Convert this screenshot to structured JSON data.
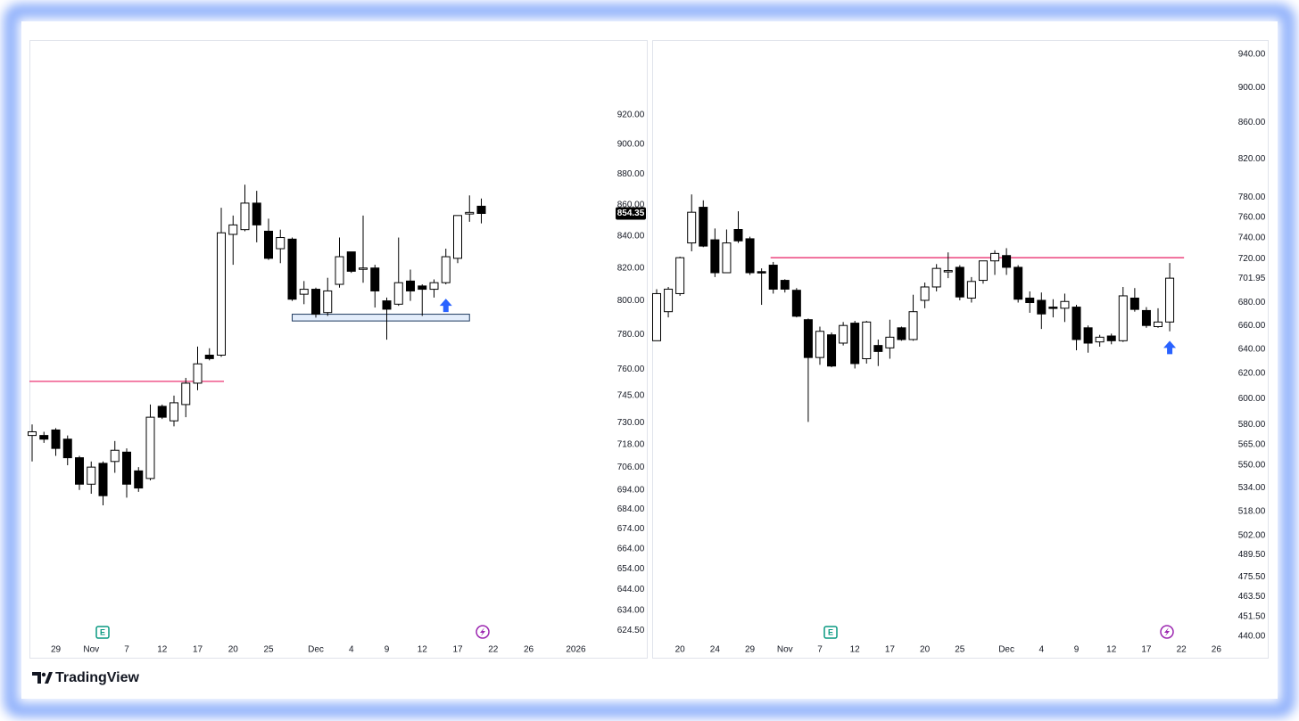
{
  "brand": "TradingView",
  "chart_data": [
    {
      "type": "candlestick",
      "yscale": "log",
      "up_color": "#ffffff",
      "down_color": "#000000",
      "categories": [
        null,
        null,
        "29",
        null,
        null,
        "Nov",
        null,
        null,
        "7",
        null,
        null,
        "12",
        null,
        null,
        "17",
        null,
        null,
        "20",
        null,
        null,
        "25",
        null,
        null,
        null,
        "Dec",
        null,
        null,
        "4",
        null,
        null,
        "9",
        null,
        null,
        "12",
        null,
        null,
        "17",
        null,
        null,
        "22",
        null,
        null,
        "26",
        null,
        null,
        null,
        "2026"
      ],
      "open": [
        723,
        723,
        726,
        721,
        711,
        697,
        708,
        709,
        714,
        704,
        700,
        739,
        731,
        740,
        752,
        768,
        768,
        841,
        844,
        861,
        843,
        832,
        838,
        804,
        807,
        793,
        810,
        830,
        820,
        820,
        800,
        798,
        812,
        809,
        807,
        811,
        826,
        854,
        859,
        null,
        null,
        null,
        null,
        null,
        null,
        null,
        null
      ],
      "high": [
        729,
        725,
        727,
        723,
        712,
        709,
        709,
        720,
        716,
        706,
        740,
        740,
        745,
        755,
        773,
        772,
        858,
        853,
        873,
        869,
        851,
        844,
        839,
        812,
        808,
        814,
        839,
        830,
        853,
        822,
        802,
        839,
        819,
        810,
        813,
        832,
        853,
        866,
        864,
        null,
        null,
        null,
        null,
        null,
        null,
        null,
        null
      ],
      "low": [
        709,
        719,
        712,
        707,
        694,
        692,
        686,
        703,
        690,
        693,
        699,
        732,
        728,
        733,
        748,
        765,
        767,
        822,
        843,
        836,
        825,
        823,
        800,
        798,
        790,
        791,
        808,
        817,
        811,
        796,
        777,
        797,
        800,
        791,
        802,
        810,
        823,
        849,
        848,
        null,
        null,
        null,
        null,
        null,
        null,
        null,
        null
      ],
      "close": [
        725,
        721,
        716,
        711,
        697,
        706,
        691,
        715,
        697,
        695,
        733,
        733,
        741,
        752,
        763,
        766,
        842,
        847,
        861,
        847,
        826,
        839,
        801,
        807,
        792,
        806,
        827,
        818,
        820,
        806,
        795,
        811,
        806,
        807,
        811,
        827,
        853,
        855,
        854.35,
        null,
        null,
        null,
        null,
        null,
        null,
        null,
        null
      ],
      "last_price_label": "854.35",
      "ylim": [
        620,
        970
      ],
      "yticks": [
        {
          "value": 920,
          "label": "920.00"
        },
        {
          "value": 900,
          "label": "900.00"
        },
        {
          "value": 880,
          "label": "880.00"
        },
        {
          "value": 860,
          "label": "860.00"
        },
        {
          "value": 840,
          "label": "840.00"
        },
        {
          "value": 820,
          "label": "820.00"
        },
        {
          "value": 800,
          "label": "800.00"
        },
        {
          "value": 780,
          "label": "780.00"
        },
        {
          "value": 760,
          "label": "760.00"
        },
        {
          "value": 745,
          "label": "745.00"
        },
        {
          "value": 730,
          "label": "730.00"
        },
        {
          "value": 718,
          "label": "718.00"
        },
        {
          "value": 706,
          "label": "706.00"
        },
        {
          "value": 694,
          "label": "694.00"
        },
        {
          "value": 684,
          "label": "684.00"
        },
        {
          "value": 674,
          "label": "674.00"
        },
        {
          "value": 664,
          "label": "664.00"
        },
        {
          "value": 654,
          "label": "654.00"
        },
        {
          "value": 644,
          "label": "644.00"
        },
        {
          "value": 634,
          "label": "634.00"
        },
        {
          "value": 624.5,
          "label": "624.50"
        }
      ],
      "hlines": [
        {
          "value": 753,
          "start": 0,
          "end": 16,
          "color": "#e91e63"
        }
      ],
      "zones": [
        {
          "low": 788,
          "high": 792,
          "start": 22,
          "end": 37,
          "color": "#1e3a5f"
        }
      ],
      "markers": [
        {
          "index": 35,
          "value": 797,
          "color": "#2962ff"
        }
      ]
    },
    {
      "type": "candlestick",
      "yscale": "log",
      "up_color": "#ffffff",
      "down_color": "#000000",
      "categories": [
        null,
        null,
        "20",
        null,
        null,
        "24",
        null,
        null,
        "29",
        null,
        null,
        "Nov",
        null,
        null,
        "7",
        null,
        null,
        "12",
        null,
        null,
        "17",
        null,
        null,
        "20",
        null,
        null,
        "25",
        null,
        null,
        null,
        "Dec",
        null,
        null,
        "4",
        null,
        null,
        "9",
        null,
        null,
        "12",
        null,
        null,
        "17",
        null,
        null,
        "22",
        null,
        null,
        "26"
      ],
      "open": [
        647,
        672,
        688,
        735,
        770,
        738,
        707,
        748,
        739,
        708,
        714,
        700,
        691,
        665,
        633,
        652,
        645,
        662,
        632,
        643,
        641,
        658,
        648,
        682,
        694,
        708,
        712,
        684,
        700,
        718,
        723,
        712,
        684,
        682,
        676,
        675,
        676,
        658,
        646,
        651,
        647,
        684,
        673,
        659,
        663,
        null,
        null,
        null,
        null
      ],
      "high": [
        692,
        694,
        722,
        783,
        777,
        749,
        748,
        766,
        741,
        711,
        717,
        701,
        693,
        666,
        659,
        654,
        663,
        664,
        664,
        648,
        665,
        659,
        687,
        698,
        715,
        726,
        714,
        703,
        718,
        728,
        730,
        714,
        690,
        689,
        683,
        688,
        678,
        660,
        652,
        653,
        694,
        693,
        676,
        675,
        716,
        null,
        null,
        null,
        null
      ],
      "low": [
        647,
        667,
        686,
        727,
        731,
        703,
        707,
        735,
        705,
        678,
        688,
        689,
        667,
        582,
        627,
        625,
        643,
        624,
        628,
        626,
        632,
        647,
        647,
        675,
        690,
        702,
        682,
        680,
        697,
        705,
        705,
        680,
        671,
        657,
        667,
        663,
        639,
        637,
        642,
        644,
        646,
        672,
        658,
        658,
        655,
        null,
        null,
        null,
        null
      ],
      "close": [
        688,
        692,
        721,
        765,
        732,
        707,
        735,
        737,
        707,
        707,
        692,
        692,
        668,
        633,
        655,
        626,
        660,
        628,
        663,
        638,
        650,
        648,
        672,
        694,
        711,
        709,
        685,
        699,
        718,
        725,
        712,
        683,
        680,
        670,
        675,
        681,
        648,
        645,
        650,
        647,
        686,
        674,
        660,
        663,
        702,
        null,
        null,
        null,
        null
      ],
      "ylim": [
        438,
        952
      ],
      "yticks": [
        {
          "value": 940,
          "label": "940.00"
        },
        {
          "value": 900,
          "label": "900.00"
        },
        {
          "value": 860,
          "label": "860.00"
        },
        {
          "value": 820,
          "label": "820.00"
        },
        {
          "value": 780,
          "label": "780.00"
        },
        {
          "value": 760,
          "label": "760.00"
        },
        {
          "value": 740,
          "label": "740.00"
        },
        {
          "value": 720,
          "label": "720.00"
        },
        701.95,
        {
          "value": 680,
          "label": "680.00"
        },
        {
          "value": 660,
          "label": "660.00"
        },
        {
          "value": 640,
          "label": "640.00"
        },
        {
          "value": 620,
          "label": "620.00"
        },
        {
          "value": 600,
          "label": "600.00"
        },
        {
          "value": 580,
          "label": "580.00"
        },
        {
          "value": 565,
          "label": "565.00"
        },
        {
          "value": 550,
          "label": "550.00"
        },
        {
          "value": 534,
          "label": "534.00"
        },
        {
          "value": 518,
          "label": "518.00"
        },
        {
          "value": 502,
          "label": "502.00"
        },
        {
          "value": 489.5,
          "label": "489.50"
        },
        {
          "value": 475.5,
          "label": "475.50"
        },
        {
          "value": 463.5,
          "label": "463.50"
        },
        {
          "value": 451.5,
          "label": "451.50"
        },
        {
          "value": 440,
          "label": "440.00"
        }
      ],
      "hlines": [
        {
          "value": 721,
          "start": 10,
          "end": 45,
          "color": "#e91e63"
        }
      ],
      "markers": [
        {
          "index": 44,
          "value": 641,
          "color": "#2962ff"
        }
      ]
    }
  ]
}
